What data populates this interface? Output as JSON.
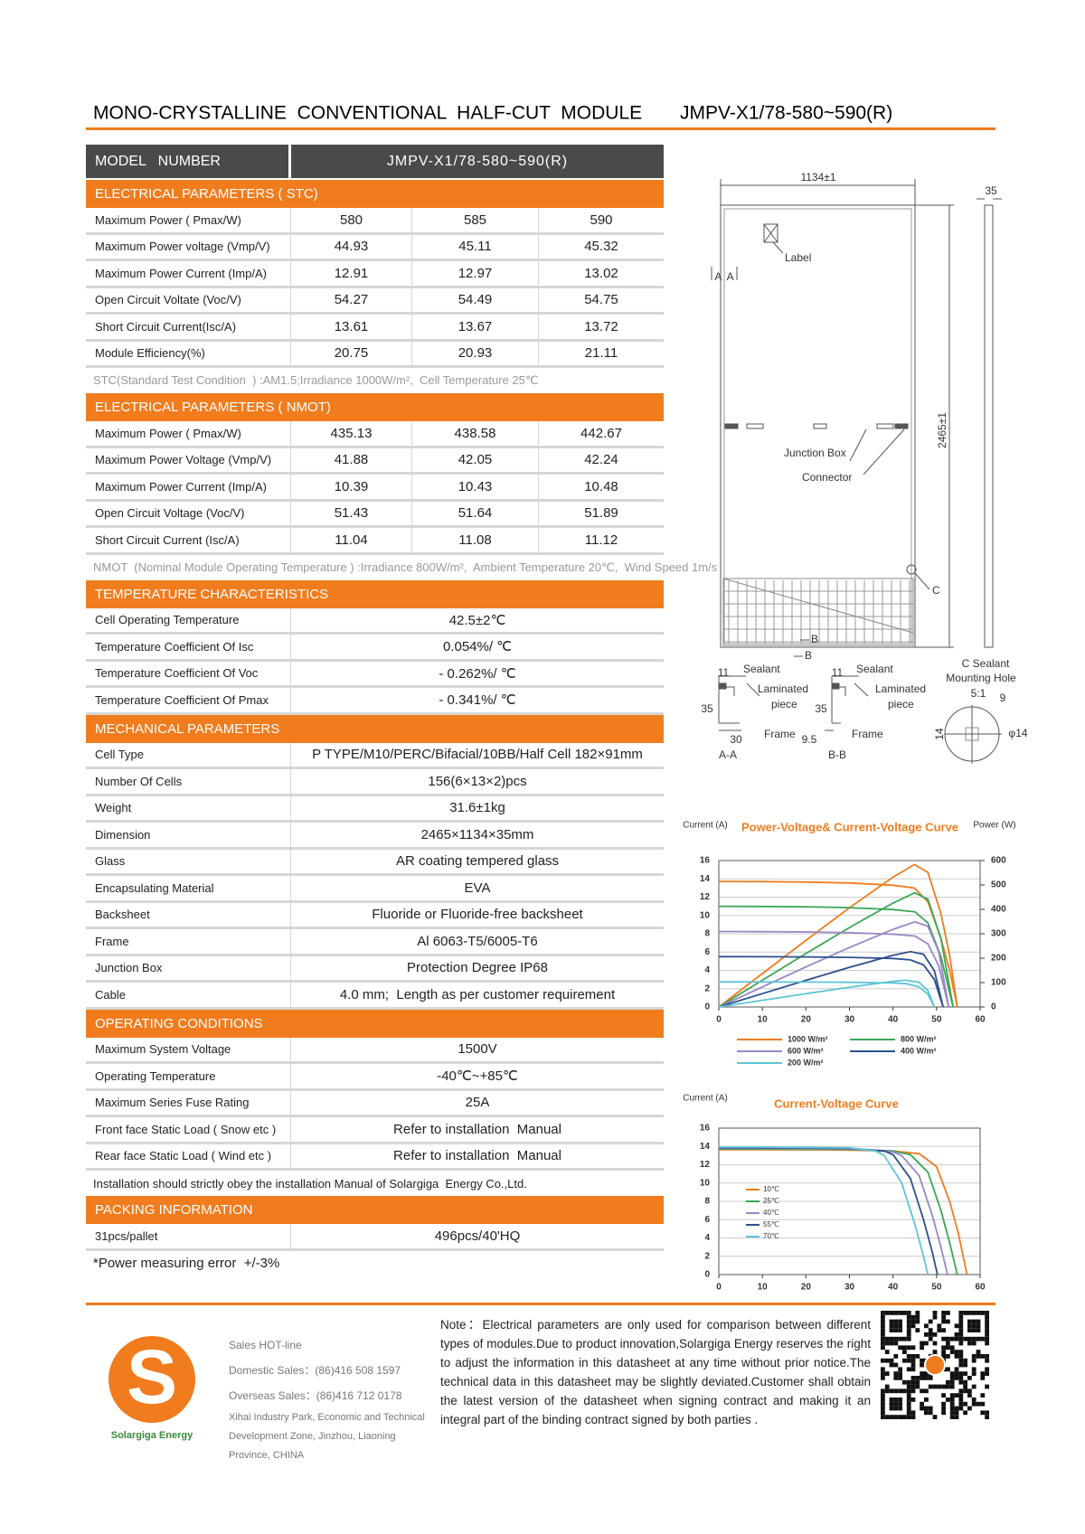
{
  "header": {
    "title": "MONO-CRYSTALLINE  CONVENTIONAL  HALF-CUT  MODULE",
    "model": "JMPV-X1/78-580~590(R)"
  },
  "table": {
    "model_label": "MODEL   NUMBER",
    "model_value": "JMPV-X1/78-580~590(R)",
    "sections": [
      {
        "heading": "ELECTRICAL PARAMETERS ( STC)",
        "rows": [
          [
            "Maximum Power ( Pmax/W)",
            "580",
            "585",
            "590"
          ],
          [
            "Maximum Power voltage (Vmp/V)",
            "44.93",
            "45.11",
            "45.32"
          ],
          [
            "Maximum Power Current (Imp/A)",
            "12.91",
            "12.97",
            "13.02"
          ],
          [
            "Open Circuit Voltate (Voc/V)",
            "54.27",
            "54.49",
            "54.75"
          ],
          [
            "Short Circuit Current(Isc/A)",
            "13.61",
            "13.67",
            "13.72"
          ],
          [
            "Module Efficiency(%)",
            "20.75",
            "20.93",
            "21.11"
          ]
        ],
        "note": "STC(Standard Test Condition  ) :AM1.5;Irradiance 1000W/m²,  Cell Temperature 25℃"
      },
      {
        "heading": "ELECTRICAL PARAMETERS ( NMOT)",
        "rows": [
          [
            "Maximum Power ( Pmax/W)",
            "435.13",
            "438.58",
            "442.67"
          ],
          [
            "Maximum Power Voltage (Vmp/V)",
            "41.88",
            "42.05",
            "42.24"
          ],
          [
            "Maximum Power Current (Imp/A)",
            "10.39",
            "10.43",
            "10.48"
          ],
          [
            "Open Circuit Voltage (Voc/V)",
            "51.43",
            "51.64",
            "51.89"
          ],
          [
            "Short Circuit Current (Isc/A)",
            "11.04",
            "11.08",
            "11.12"
          ]
        ],
        "note": "NMOT  (Nominal Module Operating Temperature ) :Irradiance 800W/m²,  Ambient Temperature 20℃,  Wind Speed 1m/s"
      },
      {
        "heading": "TEMPERATURE CHARACTERISTICS",
        "rows": [
          [
            "Cell Operating Temperature",
            "42.5±2℃"
          ],
          [
            "Temperature Coefficient Of Isc",
            "0.054%/ ℃"
          ],
          [
            "Temperature Coefficient Of Voc",
            "- 0.262%/ ℃"
          ],
          [
            "Temperature Coefficient Of Pmax",
            "- 0.341%/ ℃"
          ]
        ]
      },
      {
        "heading": "MECHANICAL PARAMETERS",
        "rows": [
          [
            "Cell Type",
            "P TYPE/M10/PERC/Bifacial/10BB/Half Cell 182×91mm"
          ],
          [
            "Number Of Cells",
            "156(6×13×2)pcs"
          ],
          [
            "Weight",
            "31.6±1kg"
          ],
          [
            "Dimension",
            "2465×1134×35mm"
          ],
          [
            "Glass",
            "AR coating tempered glass"
          ],
          [
            "Encapsulating Material",
            "EVA"
          ],
          [
            "Backsheet",
            "Fluoride or Fluoride-free backsheet"
          ],
          [
            "Frame",
            "Al 6063-T5/6005-T6"
          ],
          [
            "Junction Box",
            "Protection Degree IP68"
          ],
          [
            "Cable",
            "4.0 mm;  Length as per customer requirement"
          ]
        ]
      },
      {
        "heading": "OPERATING CONDITIONS",
        "rows": [
          [
            "Maximum System Voltage",
            "1500V"
          ],
          [
            "Operating Temperature",
            "-40℃~+85℃"
          ],
          [
            "Maximum Series Fuse Rating",
            "25A"
          ],
          [
            "Front face Static Load ( Snow etc )",
            "Refer to installation  Manual"
          ],
          [
            "Rear face Static Load ( Wind etc )",
            "Refer to installation  Manual"
          ]
        ],
        "note": "Installation should strictly obey the installation Manual of Solargiga  Energy Co.,Ltd."
      },
      {
        "heading": "PACKING INFORMATION",
        "rows": [
          [
            "31pcs/pallet",
            "496pcs/40'HQ"
          ]
        ]
      }
    ],
    "footnote": "*Power measuring error  +/-3%"
  },
  "drawing": {
    "labels": [
      "1134±1",
      "35",
      "Label",
      "A  A",
      "2465±1",
      "Junction Box",
      "Connector",
      "C",
      "B",
      "B",
      "11",
      "Sealant",
      "Laminated",
      "piece",
      "35",
      "30",
      "Frame",
      "A-A",
      "11",
      "Sealant",
      "Laminated",
      "piece",
      "35",
      "9.5",
      "Frame",
      "B-B",
      "C Sealant",
      "Mounting Hole",
      "5:1",
      "9",
      "14",
      "φ14"
    ]
  },
  "charts": [
    {
      "type": "line",
      "title": "Power-Voltage& Current-Voltage Curve",
      "y_label": "Current (A)",
      "y2_label": "Power (W)",
      "xlim": [
        0,
        60
      ],
      "xticks": [
        0,
        10,
        20,
        30,
        40,
        50,
        60
      ],
      "ylim": [
        0,
        16
      ],
      "yticks": [
        0,
        2,
        4,
        6,
        8,
        10,
        12,
        14,
        16
      ],
      "y2lim": [
        0,
        600
      ],
      "y2ticks": [
        0,
        100,
        200,
        300,
        400,
        500,
        600
      ],
      "grid": true,
      "series": [
        {
          "name": "1000 W/m²",
          "color": "#f07c1e",
          "x": [
            0,
            10,
            20,
            30,
            40,
            44.9,
            48,
            51,
            53,
            54.75
          ],
          "values": [
            13.72,
            13.7,
            13.65,
            13.55,
            13.3,
            13.0,
            11.5,
            7.5,
            4,
            0
          ],
          "power": [
            0,
            137,
            273,
            406.5,
            532,
            583.7,
            552,
            382.5,
            212,
            0
          ]
        },
        {
          "name": "800 W/m²",
          "color": "#3aa655",
          "x": [
            0,
            10,
            20,
            30,
            40,
            45,
            48,
            51,
            53.8
          ],
          "values": [
            11.0,
            10.98,
            10.95,
            10.85,
            10.65,
            10.4,
            9.2,
            5.5,
            0
          ],
          "power": [
            0,
            109.8,
            219,
            325.5,
            426,
            468,
            441.6,
            280.5,
            0
          ]
        },
        {
          "name": "600 W/m²",
          "color": "#9b86c4",
          "x": [
            0,
            10,
            20,
            30,
            40,
            45,
            48,
            50.5,
            52.8
          ],
          "values": [
            8.25,
            8.23,
            8.2,
            8.12,
            7.95,
            7.75,
            6.9,
            4.5,
            0
          ],
          "power": [
            0,
            82.3,
            164,
            243.6,
            318,
            348.8,
            331.2,
            227.3,
            0
          ]
        },
        {
          "name": "400 W/m²",
          "color": "#2e4f8e",
          "x": [
            0,
            10,
            20,
            30,
            40,
            44,
            47,
            49.5,
            51.5
          ],
          "values": [
            5.5,
            5.49,
            5.47,
            5.42,
            5.3,
            5.15,
            4.6,
            3,
            0
          ],
          "power": [
            0,
            54.9,
            109.4,
            162.6,
            212,
            226.6,
            216.2,
            148.5,
            0
          ]
        },
        {
          "name": "200 W/m²",
          "color": "#5fc4d8",
          "x": [
            0,
            10,
            20,
            30,
            40,
            43,
            46,
            48,
            49.5
          ],
          "values": [
            2.75,
            2.74,
            2.73,
            2.7,
            2.63,
            2.55,
            2.2,
            1.4,
            0
          ],
          "power": [
            0,
            27.4,
            54.6,
            81,
            105.2,
            109.7,
            101.2,
            67.2,
            0
          ]
        }
      ]
    },
    {
      "type": "line",
      "title": "Current-Voltage Curve",
      "y_label": "Current (A)",
      "xlim": [
        0,
        60
      ],
      "xticks": [
        0,
        10,
        20,
        30,
        40,
        50,
        60
      ],
      "ylim": [
        0,
        16
      ],
      "yticks": [
        0,
        2,
        4,
        6,
        8,
        10,
        12,
        14,
        16
      ],
      "grid": true,
      "series": [
        {
          "name": "10℃",
          "color": "#f07c1e",
          "x": [
            0,
            10,
            20,
            30,
            40,
            46,
            50,
            53,
            55,
            57
          ],
          "values": [
            13.65,
            13.65,
            13.63,
            13.6,
            13.5,
            13.2,
            11.8,
            8,
            4.5,
            0
          ]
        },
        {
          "name": "25℃",
          "color": "#3aa655",
          "x": [
            0,
            10,
            20,
            30,
            40,
            44,
            48,
            51,
            53,
            54.75
          ],
          "values": [
            13.72,
            13.72,
            13.7,
            13.67,
            13.5,
            13.1,
            11.2,
            7,
            3.5,
            0
          ]
        },
        {
          "name": "40℃",
          "color": "#9b86c4",
          "x": [
            0,
            10,
            20,
            30,
            40,
            42,
            46,
            49,
            51,
            52.5
          ],
          "values": [
            13.79,
            13.79,
            13.77,
            13.73,
            13.4,
            13.0,
            10.8,
            6.5,
            3,
            0
          ]
        },
        {
          "name": "55℃",
          "color": "#2e4f8e",
          "x": [
            0,
            10,
            20,
            30,
            38,
            40,
            44,
            47,
            49,
            50.2
          ],
          "values": [
            13.86,
            13.86,
            13.84,
            13.8,
            13.5,
            13.1,
            10.5,
            6,
            2.5,
            0
          ]
        },
        {
          "name": "70℃",
          "color": "#5fc4d8",
          "x": [
            0,
            10,
            20,
            30,
            36,
            38,
            42,
            45,
            47,
            48
          ],
          "values": [
            13.93,
            13.93,
            13.9,
            13.85,
            13.5,
            13.0,
            10,
            5.5,
            2,
            0
          ]
        }
      ]
    }
  ],
  "footer": {
    "logo_mark": "S",
    "brand": "Solargiga Energy",
    "hotline": "Sales HOT-line",
    "domestic": "Domestic Sales：(86)416 508 1597",
    "overseas": "Overseas Sales：(86)416 712 0178",
    "address": "Xihai Industry Park, Economic and Technical Development Zone, Jinzhou, Liaoning Province, CHINA",
    "note": "Note：Electrical parameters are only used for comparison between different types of modules.Due to product innovation,Solargiga Energy reserves the right to adjust the information in this datasheet at any time without prior notice.The technical data in this datasheet may be slightly deviated.Customer shall obtain the latest version of the datasheet when signing contract and making it an integral part of the binding contract signed by both parties ."
  }
}
